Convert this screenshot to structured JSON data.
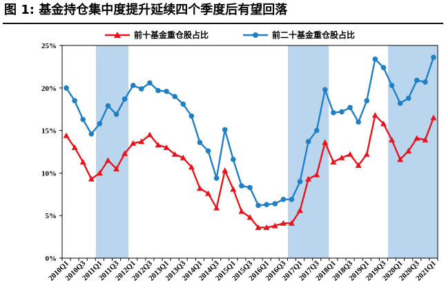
{
  "title": "图 1:  基金持仓集中度提升延续四个季度后有望回落",
  "chart_data": {
    "type": "line",
    "x": [
      "2010Q1",
      "2010Q2",
      "2010Q3",
      "2010Q4",
      "2011Q1",
      "2011Q2",
      "2011Q3",
      "2011Q4",
      "2012Q1",
      "2012Q2",
      "2012Q3",
      "2012Q4",
      "2013Q1",
      "2013Q2",
      "2013Q3",
      "2013Q4",
      "2014Q1",
      "2014Q2",
      "2014Q3",
      "2014Q4",
      "2015Q1",
      "2015Q2",
      "2015Q3",
      "2015Q4",
      "2016Q1",
      "2016Q2",
      "2016Q3",
      "2016Q4",
      "2017Q1",
      "2017Q2",
      "2017Q3",
      "2017Q4",
      "2018Q1",
      "2018Q2",
      "2018Q3",
      "2018Q4",
      "2019Q1",
      "2019Q2",
      "2019Q3",
      "2019Q4",
      "2020Q1",
      "2020Q2",
      "2020Q3",
      "2020Q4",
      "2021Q1"
    ],
    "x_tick_labels": [
      "2010Q1",
      "2010Q3",
      "2011Q1",
      "2011Q3",
      "2012Q1",
      "2012Q3",
      "2013Q1",
      "2013Q3",
      "2014Q1",
      "2014Q3",
      "2015Q1",
      "2015Q3",
      "2016Q1",
      "2016Q3",
      "2017Q1",
      "2017Q3",
      "2018Q1",
      "2018Q3",
      "2019Q1",
      "2019Q3",
      "2020Q1",
      "2020Q3",
      "2021Q1"
    ],
    "y_tick_labels": [
      "0%",
      "5%",
      "10%",
      "15%",
      "20%",
      "25%"
    ],
    "ylim": [
      0,
      25
    ],
    "series": [
      {
        "name": "前十基金重仓股占比",
        "color": "#e8131b",
        "marker": "triangle",
        "values": [
          14.4,
          13.0,
          11.3,
          9.3,
          10.0,
          11.5,
          10.5,
          12.3,
          13.5,
          13.7,
          14.5,
          13.3,
          13.0,
          12.2,
          11.8,
          10.7,
          8.2,
          7.6,
          5.9,
          10.3,
          8.1,
          5.5,
          4.8,
          3.6,
          3.6,
          3.8,
          4.1,
          4.1,
          5.6,
          9.3,
          9.8,
          13.6,
          11.3,
          11.8,
          12.2,
          10.9,
          12.2,
          16.8,
          15.8,
          13.9,
          11.6,
          12.6,
          14.1,
          13.9,
          16.5
        ]
      },
      {
        "name": "前二十基金重仓股占比",
        "color": "#1f7fc4",
        "marker": "circle",
        "values": [
          20.0,
          18.5,
          16.3,
          14.6,
          15.8,
          17.9,
          16.9,
          18.7,
          20.3,
          19.9,
          20.6,
          19.7,
          19.6,
          19.0,
          18.1,
          16.7,
          13.6,
          12.6,
          9.4,
          15.1,
          11.6,
          8.5,
          8.3,
          6.2,
          6.3,
          6.4,
          6.9,
          6.9,
          9.0,
          13.7,
          15.0,
          19.8,
          17.1,
          17.2,
          17.7,
          16.0,
          18.5,
          23.4,
          22.4,
          20.3,
          18.2,
          18.8,
          20.9,
          20.7,
          23.6
        ]
      }
    ],
    "shaded_ranges": [
      [
        "2011Q1",
        "2011Q4"
      ],
      [
        "2016Q4",
        "2017Q4"
      ],
      [
        "2019Q4",
        "2021Q1"
      ]
    ],
    "shade_color": "#b9d6ee",
    "legend_position": "top"
  }
}
